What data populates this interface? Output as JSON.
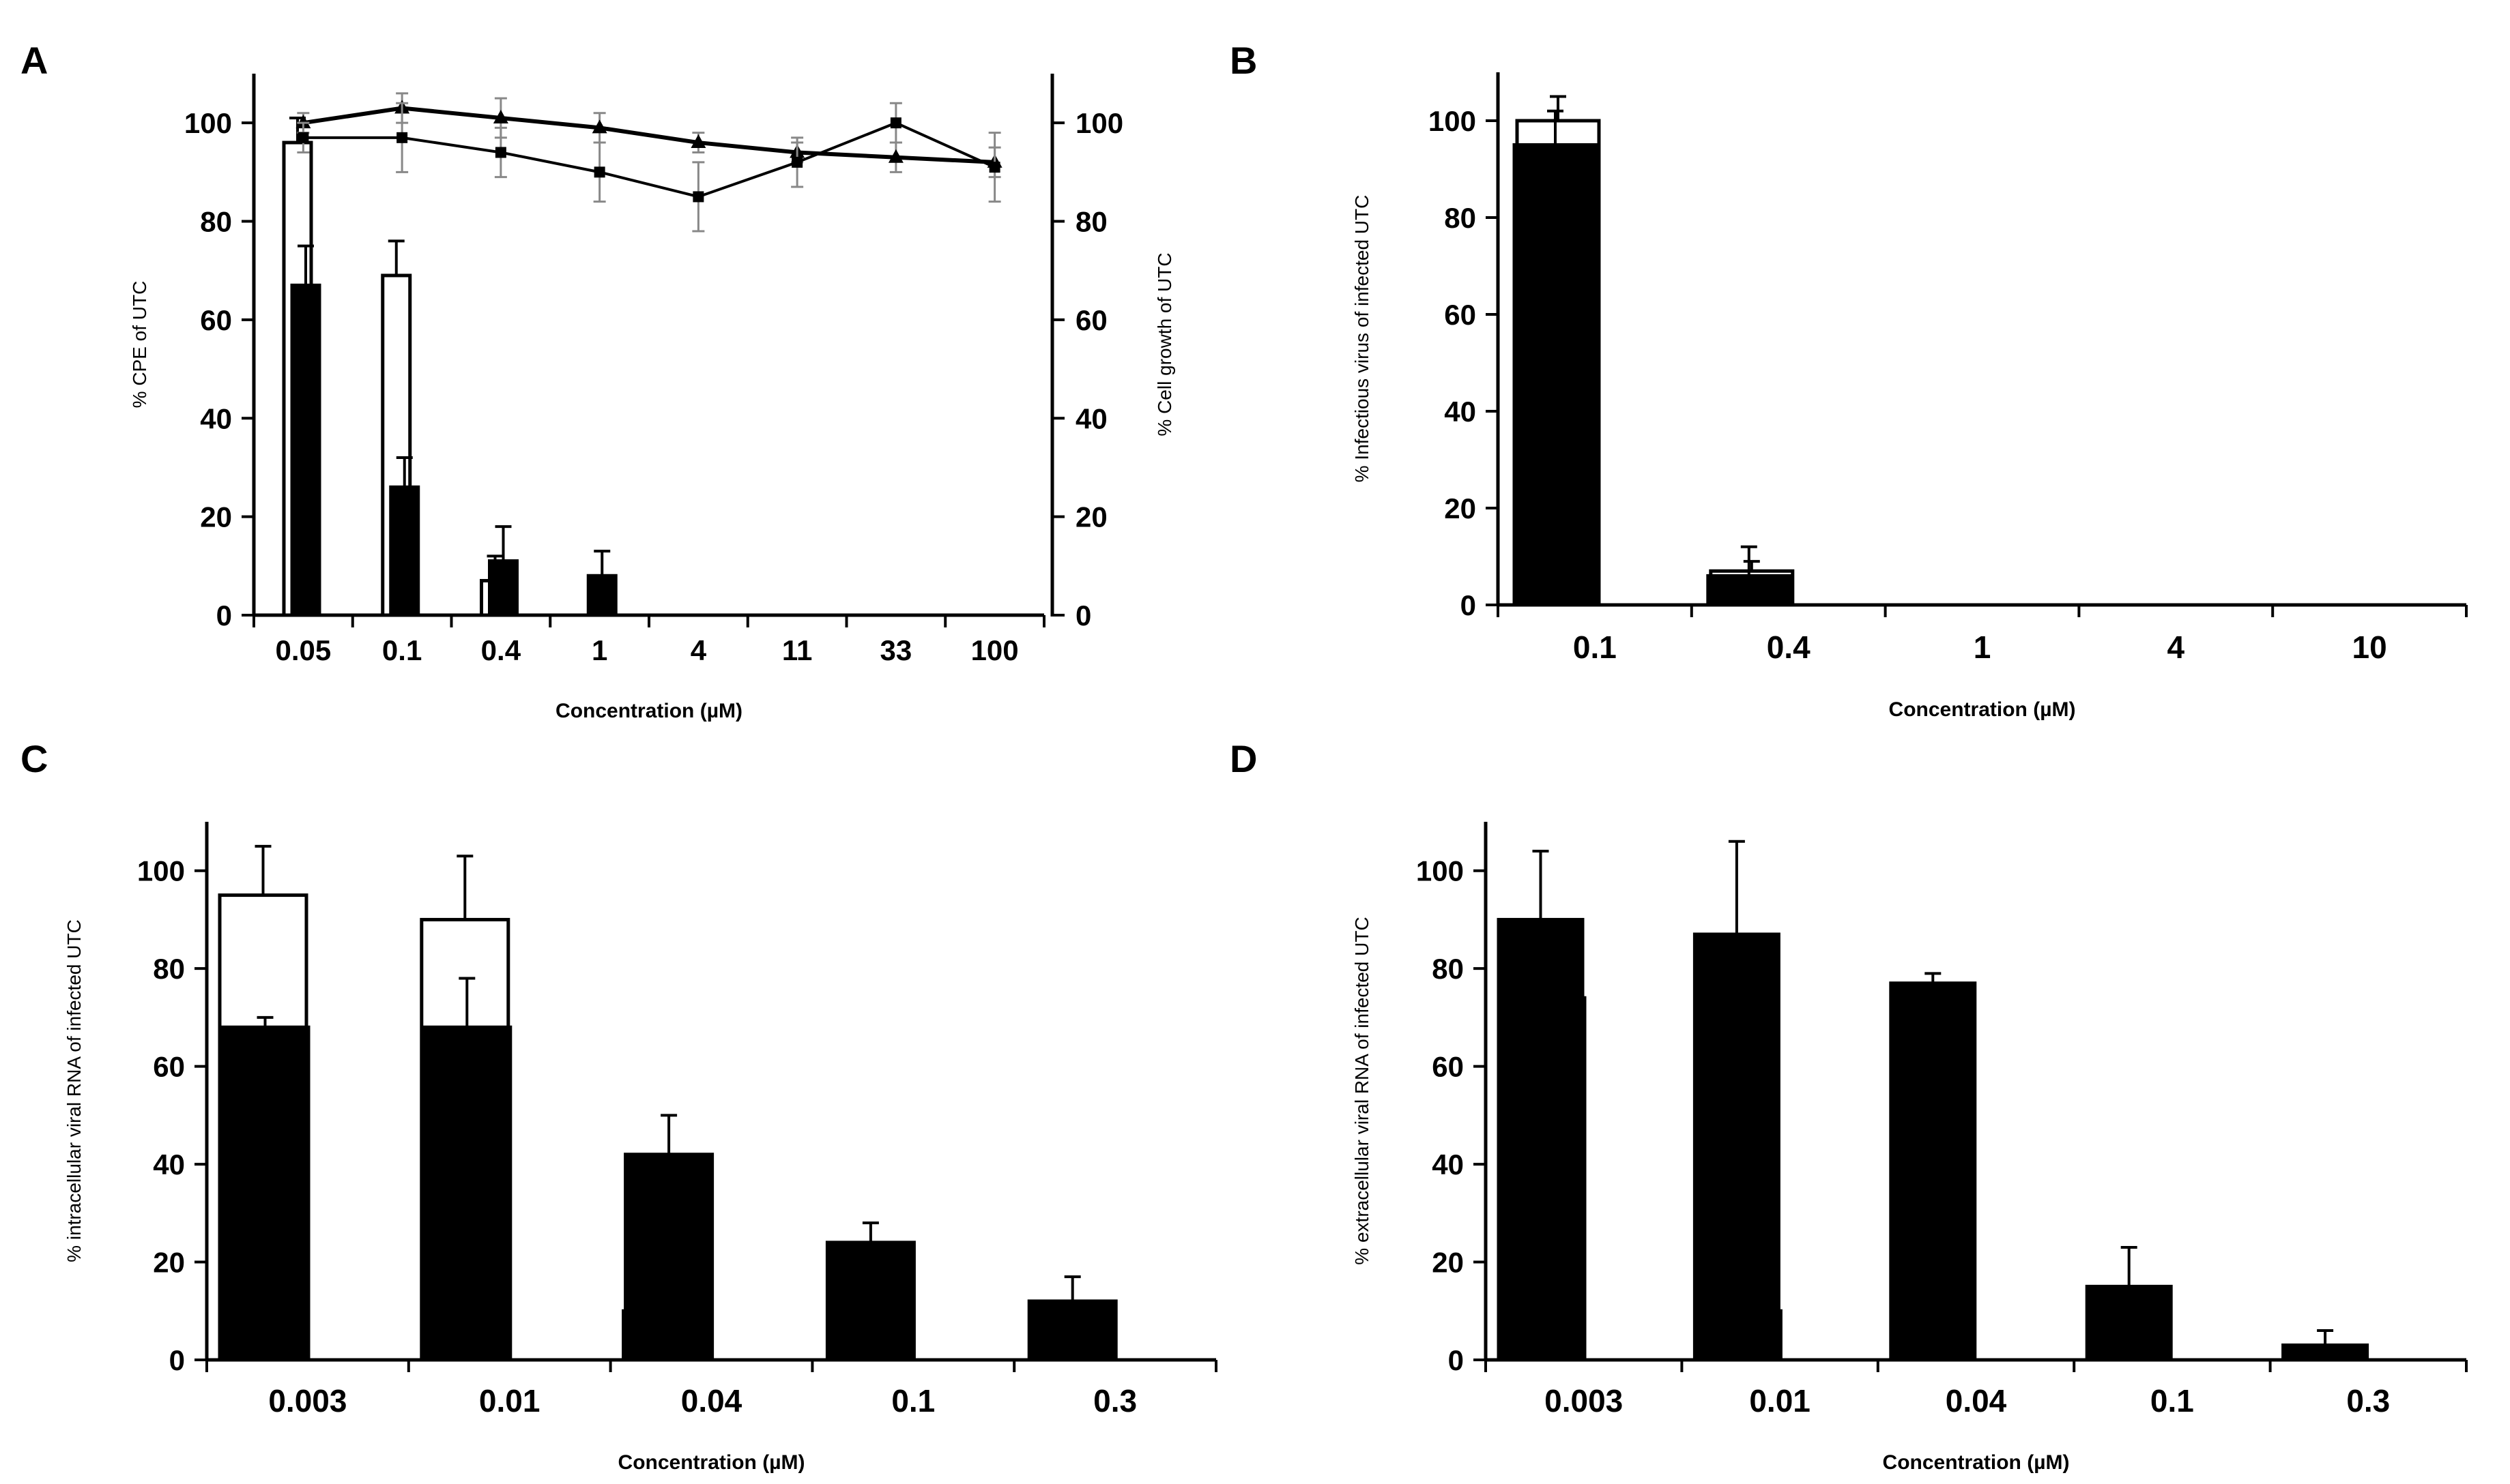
{
  "chart_data": [
    {
      "panel": "A",
      "type": "bar",
      "categories": [
        "0.05",
        "0.1",
        "0.4",
        "1",
        "4",
        "11",
        "33",
        "100"
      ],
      "xlabel": "Concentration (µM)",
      "ylabel": "% CPE of UTC",
      "y2label": "% Cell growth of UTC",
      "ylim": [
        0,
        110
      ],
      "yticks": [
        0,
        20,
        40,
        60,
        80,
        100
      ],
      "y2lim": [
        0,
        110
      ],
      "y2ticks": [
        0,
        20,
        40,
        60,
        80,
        100
      ],
      "series": [
        {
          "name": "open bars",
          "fill": "#ffffff",
          "values": [
            96,
            69,
            7,
            0,
            0,
            0,
            0,
            0
          ],
          "errors": [
            5,
            7,
            5,
            0,
            0,
            0,
            0,
            0
          ]
        },
        {
          "name": "filled bars",
          "fill": "#000000",
          "values": [
            67,
            26,
            11,
            8,
            0,
            0,
            0,
            0
          ],
          "errors": [
            8,
            6,
            7,
            5,
            0,
            0,
            0,
            0
          ]
        }
      ],
      "lines": [
        {
          "name": "triangle line",
          "marker": "triangle",
          "values": [
            100,
            103,
            101,
            99,
            96,
            94,
            93,
            92
          ],
          "errors": [
            2,
            3,
            4,
            3,
            2,
            2,
            3,
            3
          ]
        },
        {
          "name": "square line",
          "marker": "square",
          "values": [
            97,
            97,
            94,
            90,
            85,
            92,
            100,
            91
          ],
          "errors": [
            3,
            7,
            5,
            6,
            7,
            5,
            4,
            7
          ]
        }
      ]
    },
    {
      "panel": "B",
      "type": "bar",
      "categories": [
        "0.1",
        "0.4",
        "1",
        "4",
        "10"
      ],
      "xlabel": "Concentration (µM)",
      "ylabel": "% Infectious virus of infected UTC",
      "ylim": [
        0,
        110
      ],
      "yticks": [
        0,
        20,
        40,
        60,
        80,
        100
      ],
      "series": [
        {
          "name": "open bars",
          "fill": "#ffffff",
          "values": [
            100,
            7,
            0,
            0,
            0
          ],
          "errors": [
            5,
            2,
            0,
            0,
            0
          ]
        },
        {
          "name": "filled bars",
          "fill": "#000000",
          "values": [
            95,
            6,
            0,
            0,
            0
          ],
          "errors": [
            7,
            6,
            0,
            0,
            0
          ]
        }
      ]
    },
    {
      "panel": "C",
      "type": "bar",
      "categories": [
        "0.003",
        "0.01",
        "0.04",
        "0.1",
        "0.3"
      ],
      "xlabel": "Concentration (µM)",
      "ylabel": "% intracellular viral RNA of infected UTC",
      "ylim": [
        0,
        110
      ],
      "yticks": [
        0,
        20,
        40,
        60,
        80,
        100
      ],
      "series": [
        {
          "name": "open bars",
          "fill": "#ffffff",
          "values": [
            95,
            90,
            10,
            0,
            0
          ],
          "errors": [
            10,
            13,
            9,
            0,
            0
          ]
        },
        {
          "name": "filled bars",
          "fill": "#000000",
          "values": [
            68,
            68,
            42,
            24,
            12
          ],
          "errors": [
            2,
            10,
            8,
            4,
            5
          ]
        }
      ]
    },
    {
      "panel": "D",
      "type": "bar",
      "categories": [
        "0.003",
        "0.01",
        "0.04",
        "0.1",
        "0.3"
      ],
      "xlabel": "Concentration (µM)",
      "ylabel": "% extracellular viral RNA of infected UTC",
      "ylim": [
        0,
        110
      ],
      "yticks": [
        0,
        20,
        40,
        60,
        80,
        100
      ],
      "series": [
        {
          "name": "open bars",
          "fill": "#ffffff",
          "values": [
            74,
            10,
            0,
            0,
            0
          ],
          "errors": [
            15,
            7,
            0,
            0,
            0
          ]
        },
        {
          "name": "filled bars",
          "fill": "#000000",
          "values": [
            90,
            87,
            77,
            15,
            3
          ],
          "errors": [
            14,
            19,
            2,
            8,
            3
          ]
        }
      ]
    }
  ]
}
